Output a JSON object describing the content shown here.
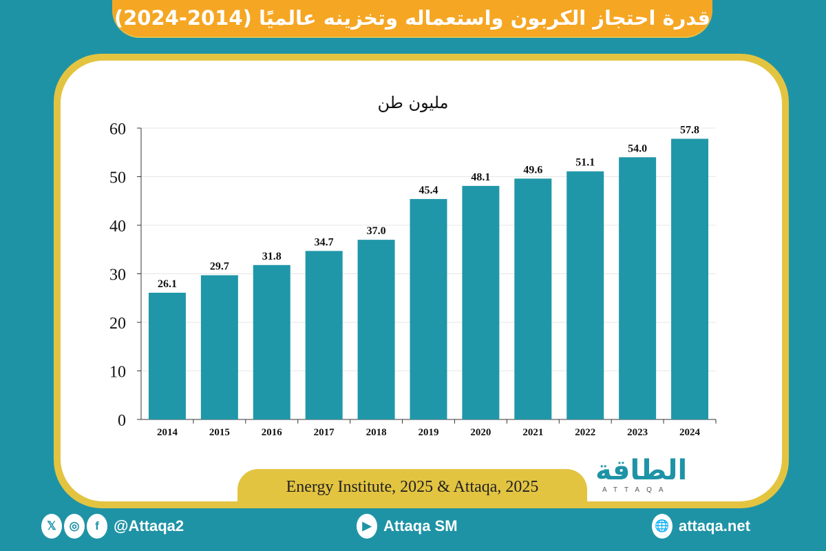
{
  "title": "قدرة احتجاز الكربون واستعماله وتخزينه عالميًا (2014-2024)",
  "source": "Energy Institute, 2025 & Attaqa, 2025",
  "logo": {
    "arabic": "الطاقة",
    "latin": "ATTAQA"
  },
  "footer": {
    "social_handle": "@Attaqa2",
    "youtube": "Attaqa SM",
    "website": "attaqa.net",
    "icons": [
      "x-icon",
      "instagram-icon",
      "facebook-icon",
      "youtube-icon",
      "globe-icon"
    ]
  },
  "colors": {
    "background": "#1f93a6",
    "bar": "#2097a8",
    "title_bar": "#f5a623",
    "frame": "#e3c441"
  },
  "chart_data": {
    "type": "bar",
    "title": "مليون طن",
    "categories": [
      "2014",
      "2015",
      "2016",
      "2017",
      "2018",
      "2019",
      "2020",
      "2021",
      "2022",
      "2023",
      "2024"
    ],
    "values": [
      26.1,
      29.7,
      31.8,
      34.7,
      37.0,
      45.4,
      48.1,
      49.6,
      51.1,
      54.0,
      57.8
    ],
    "value_labels": [
      "26.1",
      "29.7",
      "31.8",
      "34.7",
      "37.0",
      "45.4",
      "48.1",
      "49.6",
      "51.1",
      "54.0",
      "57.8"
    ],
    "ylim": [
      0,
      60
    ],
    "yticks": [
      "0",
      "10",
      "20",
      "30",
      "40",
      "50",
      "60"
    ],
    "grid": true,
    "legend": "none"
  }
}
